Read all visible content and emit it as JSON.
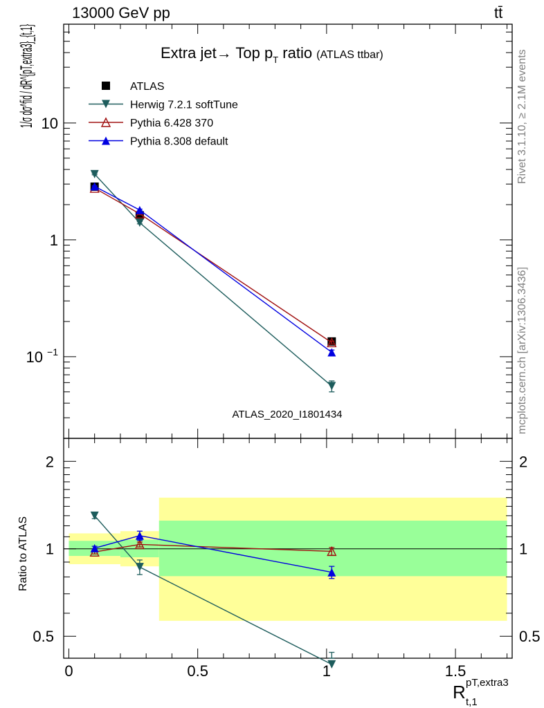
{
  "header": {
    "left": "13000 GeV pp",
    "right": "tt̄"
  },
  "side_labels": {
    "upper": "Rivet 3.1.10, ≥ 2.1M events",
    "lower": "mcplots.cern.ch [arXiv:1306.3436]"
  },
  "chart_data": [
    {
      "type": "line",
      "panel": "main",
      "title_main": "Extra jet→ Top p",
      "title_sub": "T",
      "title_tail": " ratio",
      "title_note": "(ATLAS ttbar)",
      "analysis_label": "ATLAS_2020_I1801434",
      "ylabel": "1/σ dσ^fid / dR^{pT,extra3}_{t,1}",
      "yscale": "log",
      "ylim": [
        0.02,
        70
      ],
      "xlim": [
        -0.02,
        1.72
      ],
      "yticks": [
        {
          "v": 10,
          "label": "10"
        },
        {
          "v": 1,
          "label": "1"
        },
        {
          "v": 0.1,
          "label": "10",
          "sup": "−1"
        }
      ],
      "series": [
        {
          "name": "ATLAS",
          "color": "#000000",
          "marker": "square",
          "x": [
            0.1,
            0.275,
            1.02
          ],
          "y": [
            2.85,
            1.62,
            0.135
          ]
        },
        {
          "name": "Herwig 7.2.1 softTune",
          "color": "#1d5c5c",
          "marker": "triangle-down",
          "x": [
            0.1,
            0.275,
            1.02
          ],
          "y": [
            3.65,
            1.4,
            0.056
          ],
          "yerr": [
            0.05,
            0.03,
            0.006
          ]
        },
        {
          "name": "Pythia 6.428 370",
          "color": "#a01010",
          "marker": "triangle-up-open",
          "x": [
            0.1,
            0.275,
            1.02
          ],
          "y": [
            2.77,
            1.67,
            0.132
          ],
          "yerr": [
            0.03,
            0.03,
            0.004
          ]
        },
        {
          "name": "Pythia 8.308 default",
          "color": "#0000e0",
          "marker": "triangle-up",
          "x": [
            0.1,
            0.275,
            1.02
          ],
          "y": [
            2.87,
            1.8,
            0.109
          ],
          "yerr": [
            0.03,
            0.03,
            0.005
          ]
        }
      ]
    },
    {
      "type": "line",
      "panel": "ratio",
      "ylabel": "Ratio to ATLAS",
      "xlabel": "R",
      "xlabel_sup": "pT,extra3",
      "xlabel_sub": "t,1",
      "yscale": "log",
      "ylim": [
        0.42,
        2.4
      ],
      "xlim": [
        -0.02,
        1.72
      ],
      "xticks": [
        0,
        0.5,
        1,
        1.5
      ],
      "xtick_labels": [
        "0",
        "0.5",
        "1",
        "1.5"
      ],
      "yticks": [
        {
          "v": 0.5,
          "label": "0.5"
        },
        {
          "v": 1,
          "label": "1"
        },
        {
          "v": 2,
          "label": "2"
        }
      ],
      "bands": [
        {
          "x0": 0.0,
          "x1": 0.2,
          "yellow": [
            0.885,
            1.13
          ],
          "green": [
            0.945,
            1.065
          ]
        },
        {
          "x0": 0.2,
          "x1": 0.35,
          "yellow": [
            0.87,
            1.15
          ],
          "green": [
            0.935,
            1.075
          ]
        },
        {
          "x0": 0.35,
          "x1": 1.7,
          "yellow": [
            0.565,
            1.5
          ],
          "green": [
            0.805,
            1.25
          ]
        }
      ],
      "band_colors": {
        "yellow": "#ffff99",
        "green": "#99ff99"
      },
      "series": [
        {
          "name": "Herwig 7.2.1 softTune",
          "color": "#1d5c5c",
          "marker": "triangle-down",
          "x": [
            0.1,
            0.275,
            1.02
          ],
          "y": [
            1.3,
            0.865,
            0.4
          ],
          "yerr": [
            0.03,
            0.05,
            0.04
          ]
        },
        {
          "name": "Pythia 6.428 370",
          "color": "#a01010",
          "marker": "triangle-up-open",
          "x": [
            0.1,
            0.275,
            1.02
          ],
          "y": [
            0.975,
            1.035,
            0.98
          ],
          "yerr": [
            0.015,
            0.02,
            0.03
          ]
        },
        {
          "name": "Pythia 8.308 default",
          "color": "#0000e0",
          "marker": "triangle-up",
          "x": [
            0.1,
            0.275,
            1.02
          ],
          "y": [
            1.005,
            1.11,
            0.83
          ],
          "yerr": [
            0.015,
            0.04,
            0.04
          ]
        }
      ]
    }
  ]
}
